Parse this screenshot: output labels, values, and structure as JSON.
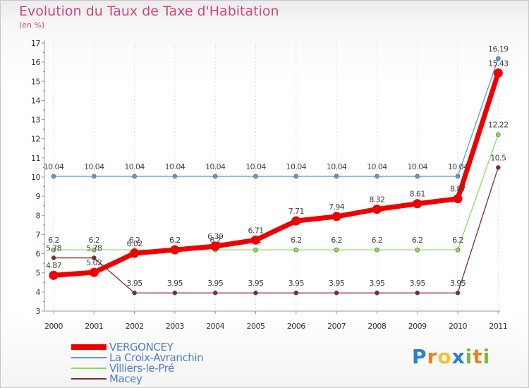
{
  "header": {
    "title": "Evolution du Taux de Taxe d'Habitation",
    "unit": "(en %)"
  },
  "brand": {
    "letters": [
      "P",
      "r",
      "o",
      "x",
      "i",
      "t",
      "i"
    ],
    "colors": [
      "#2a7fd4",
      "#ef7f1a",
      "#f1c232",
      "#2a7fd4",
      "#7cb83a",
      "#ef7f1a",
      "#7cb83a"
    ]
  },
  "chart_data": {
    "type": "line",
    "title": "Evolution du Taux de Taxe d'Habitation",
    "ylabel": "(en %)",
    "xlabel": "",
    "x": [
      "2000",
      "2001",
      "2002",
      "2003",
      "2004",
      "2005",
      "2006",
      "2007",
      "2008",
      "2009",
      "2010",
      "2011"
    ],
    "ylim": [
      3,
      17
    ],
    "yticks": [
      "3",
      "4",
      "5",
      "6",
      "7",
      "8",
      "9",
      "10",
      "11",
      "12",
      "13",
      "14",
      "15",
      "16",
      "17"
    ],
    "grid": "vertical",
    "legend_position": "bottom-left",
    "series": [
      {
        "name": "La Croix-Avranchin",
        "color": "#5b9bd5",
        "weight": "thin",
        "values": [
          10.04,
          10.04,
          10.04,
          10.04,
          10.04,
          10.04,
          10.04,
          10.04,
          10.04,
          10.04,
          10.04,
          16.19
        ],
        "labels": [
          "10.04",
          "10.04",
          "10.04",
          "10.04",
          "10.04",
          "10.04",
          "10.04",
          "10.04",
          "10.04",
          "10.04",
          "10.04",
          "16.19"
        ]
      },
      {
        "name": "Villiers-le-Pré",
        "color": "#8fdb5a",
        "weight": "thin",
        "values": [
          6.2,
          6.2,
          6.2,
          6.2,
          6.2,
          6.2,
          6.2,
          6.2,
          6.2,
          6.2,
          6.2,
          12.22
        ],
        "labels": [
          "6.2",
          "6.2",
          "6.2",
          "6.2",
          "6.2",
          "6.2",
          "6.2",
          "6.2",
          "6.2",
          "6.2",
          "6.2",
          "12.22"
        ]
      },
      {
        "name": "Macey",
        "color": "#7a2f2f",
        "weight": "thin",
        "values": [
          5.78,
          5.78,
          3.95,
          3.95,
          3.95,
          3.95,
          3.95,
          3.95,
          3.95,
          3.95,
          3.95,
          10.5
        ],
        "labels": [
          "5.78",
          "5.78",
          "3.95",
          "3.95",
          "3.95",
          "3.95",
          "3.95",
          "3.95",
          "3.95",
          "3.95",
          "3.95",
          "10.5"
        ]
      },
      {
        "name": "VERGONCEY",
        "color": "#ee0000",
        "weight": "bold",
        "values": [
          4.87,
          5.02,
          6.02,
          6.2,
          6.39,
          6.71,
          7.71,
          7.94,
          8.32,
          8.61,
          8.87,
          15.43
        ],
        "labels": [
          "4.87",
          "5.02",
          "6.02",
          "6.2",
          "6.39",
          "6.71",
          "7.71",
          "7.94",
          "8.32",
          "8.61",
          "8.87",
          "15.43"
        ]
      }
    ]
  }
}
